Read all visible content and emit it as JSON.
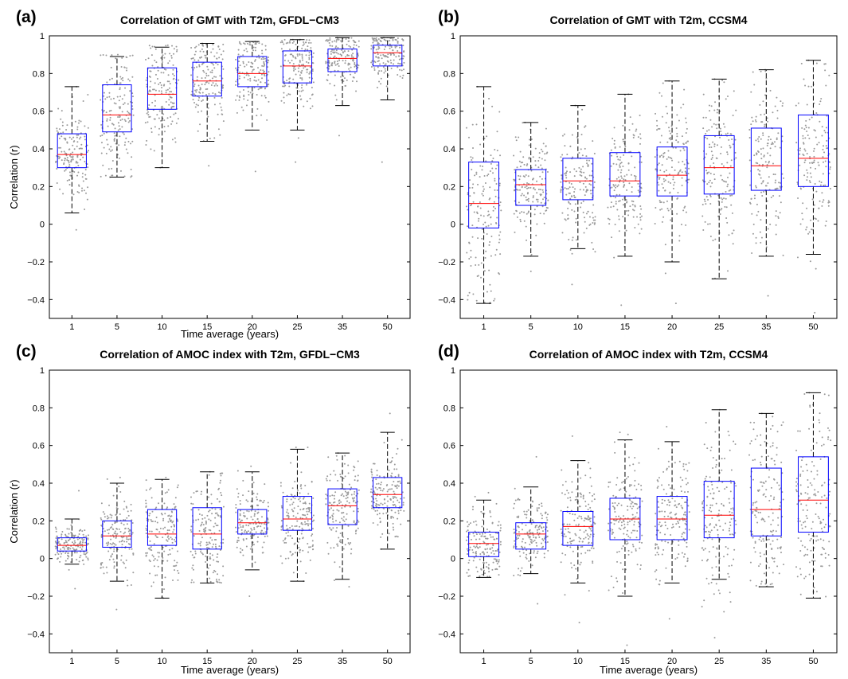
{
  "chart_data": [
    {
      "type": "box",
      "panel_label": "(a)",
      "title": "Correlation of GMT with T2m, GFDL−CM3",
      "xlabel": "Time average (years)",
      "ylabel": "Correlation (r)",
      "ylim": [
        -0.5,
        1
      ],
      "yticks": [
        -0.4,
        -0.2,
        0,
        0.2,
        0.4,
        0.6,
        0.8,
        1
      ],
      "ytick_labels": [
        "−0.4",
        "−0.2",
        "0",
        "0.2",
        "0.4",
        "0.6",
        "0.8",
        "1"
      ],
      "categories": [
        "1",
        "5",
        "10",
        "15",
        "20",
        "25",
        "35",
        "50"
      ],
      "boxes": [
        {
          "min": 0.06,
          "q1": 0.3,
          "median": 0.37,
          "q3": 0.48,
          "max": 0.73,
          "pmin": -0.03,
          "pmax": 0.73
        },
        {
          "min": 0.25,
          "q1": 0.49,
          "median": 0.58,
          "q3": 0.74,
          "max": 0.89,
          "pmin": 0.25,
          "pmax": 0.9
        },
        {
          "min": 0.3,
          "q1": 0.61,
          "median": 0.69,
          "q3": 0.83,
          "max": 0.94,
          "pmin": 0.3,
          "pmax": 0.95
        },
        {
          "min": 0.44,
          "q1": 0.68,
          "median": 0.76,
          "q3": 0.86,
          "max": 0.96,
          "pmin": 0.31,
          "pmax": 0.96
        },
        {
          "min": 0.5,
          "q1": 0.73,
          "median": 0.8,
          "q3": 0.89,
          "max": 0.97,
          "pmin": 0.28,
          "pmax": 0.97
        },
        {
          "min": 0.5,
          "q1": 0.75,
          "median": 0.84,
          "q3": 0.92,
          "max": 0.98,
          "pmin": 0.33,
          "pmax": 0.98
        },
        {
          "min": 0.63,
          "q1": 0.81,
          "median": 0.88,
          "q3": 0.93,
          "max": 0.99,
          "pmin": 0.47,
          "pmax": 0.99
        },
        {
          "min": 0.66,
          "q1": 0.84,
          "median": 0.91,
          "q3": 0.95,
          "max": 0.99,
          "pmin": 0.33,
          "pmax": 0.99
        }
      ]
    },
    {
      "type": "box",
      "panel_label": "(b)",
      "title": "Correlation of GMT with T2m, CCSM4",
      "xlabel": "",
      "ylabel": "",
      "ylim": [
        -0.5,
        1
      ],
      "yticks": [
        -0.4,
        -0.2,
        0,
        0.2,
        0.4,
        0.6,
        0.8,
        1
      ],
      "ytick_labels": [
        "−0.4",
        "−0.2",
        "0",
        "0.2",
        "0.4",
        "0.6",
        "0.8",
        "1"
      ],
      "categories": [
        "1",
        "5",
        "10",
        "15",
        "20",
        "25",
        "35",
        "50"
      ],
      "boxes": [
        {
          "min": -0.42,
          "q1": -0.02,
          "median": 0.11,
          "q3": 0.33,
          "max": 0.73,
          "pmin": -0.42,
          "pmax": 0.73
        },
        {
          "min": -0.17,
          "q1": 0.1,
          "median": 0.21,
          "q3": 0.29,
          "max": 0.54,
          "pmin": -0.25,
          "pmax": 0.54
        },
        {
          "min": -0.13,
          "q1": 0.13,
          "median": 0.23,
          "q3": 0.35,
          "max": 0.63,
          "pmin": -0.32,
          "pmax": 0.63
        },
        {
          "min": -0.17,
          "q1": 0.15,
          "median": 0.23,
          "q3": 0.38,
          "max": 0.69,
          "pmin": -0.43,
          "pmax": 0.69
        },
        {
          "min": -0.2,
          "q1": 0.15,
          "median": 0.26,
          "q3": 0.41,
          "max": 0.76,
          "pmin": -0.42,
          "pmax": 0.76
        },
        {
          "min": -0.29,
          "q1": 0.16,
          "median": 0.3,
          "q3": 0.47,
          "max": 0.77,
          "pmin": -0.29,
          "pmax": 0.77
        },
        {
          "min": -0.17,
          "q1": 0.18,
          "median": 0.31,
          "q3": 0.51,
          "max": 0.82,
          "pmin": -0.38,
          "pmax": 0.82
        },
        {
          "min": -0.16,
          "q1": 0.2,
          "median": 0.35,
          "q3": 0.58,
          "max": 0.87,
          "pmin": -0.47,
          "pmax": 0.87
        }
      ]
    },
    {
      "type": "box",
      "panel_label": "(c)",
      "title": "Correlation of AMOC index with T2m, GFDL−CM3",
      "xlabel": "Time average (years)",
      "ylabel": "Correlation (r)",
      "ylim": [
        -0.5,
        1
      ],
      "yticks": [
        -0.4,
        -0.2,
        0,
        0.2,
        0.4,
        0.6,
        0.8,
        1
      ],
      "ytick_labels": [
        "−0.4",
        "−0.2",
        "0",
        "0.2",
        "0.4",
        "0.6",
        "0.8",
        "1"
      ],
      "categories": [
        "1",
        "5",
        "10",
        "15",
        "20",
        "25",
        "35",
        "50"
      ],
      "boxes": [
        {
          "min": -0.03,
          "q1": 0.04,
          "median": 0.07,
          "q3": 0.11,
          "max": 0.21,
          "pmin": -0.16,
          "pmax": 0.36
        },
        {
          "min": -0.12,
          "q1": 0.06,
          "median": 0.12,
          "q3": 0.2,
          "max": 0.4,
          "pmin": -0.27,
          "pmax": 0.43
        },
        {
          "min": -0.21,
          "q1": 0.07,
          "median": 0.13,
          "q3": 0.26,
          "max": 0.42,
          "pmin": -0.21,
          "pmax": 0.43
        },
        {
          "min": -0.13,
          "q1": 0.05,
          "median": 0.13,
          "q3": 0.27,
          "max": 0.46,
          "pmin": -0.13,
          "pmax": 0.46
        },
        {
          "min": -0.06,
          "q1": 0.13,
          "median": 0.19,
          "q3": 0.26,
          "max": 0.46,
          "pmin": -0.2,
          "pmax": 0.49
        },
        {
          "min": -0.12,
          "q1": 0.15,
          "median": 0.21,
          "q3": 0.33,
          "max": 0.58,
          "pmin": -0.12,
          "pmax": 0.59
        },
        {
          "min": -0.11,
          "q1": 0.18,
          "median": 0.28,
          "q3": 0.37,
          "max": 0.56,
          "pmin": -0.15,
          "pmax": 0.56
        },
        {
          "min": 0.05,
          "q1": 0.27,
          "median": 0.34,
          "q3": 0.43,
          "max": 0.67,
          "pmin": 0.05,
          "pmax": 0.77
        }
      ]
    },
    {
      "type": "box",
      "panel_label": "(d)",
      "title": "Correlation of AMOC index with T2m, CCSM4",
      "xlabel": "Time average (years)",
      "ylabel": "",
      "ylim": [
        -0.5,
        1
      ],
      "yticks": [
        -0.4,
        -0.2,
        0,
        0.2,
        0.4,
        0.6,
        0.8,
        1
      ],
      "ytick_labels": [
        "−0.4",
        "−0.2",
        "0",
        "0.2",
        "0.4",
        "0.6",
        "0.8",
        "1"
      ],
      "categories": [
        "1",
        "5",
        "10",
        "15",
        "20",
        "25",
        "35",
        "50"
      ],
      "boxes": [
        {
          "min": -0.1,
          "q1": 0.01,
          "median": 0.08,
          "q3": 0.14,
          "max": 0.31,
          "pmin": -0.1,
          "pmax": 0.35
        },
        {
          "min": -0.08,
          "q1": 0.05,
          "median": 0.13,
          "q3": 0.19,
          "max": 0.38,
          "pmin": -0.24,
          "pmax": 0.54
        },
        {
          "min": -0.13,
          "q1": 0.07,
          "median": 0.17,
          "q3": 0.25,
          "max": 0.52,
          "pmin": -0.34,
          "pmax": 0.65
        },
        {
          "min": -0.2,
          "q1": 0.1,
          "median": 0.21,
          "q3": 0.32,
          "max": 0.63,
          "pmin": -0.46,
          "pmax": 0.67
        },
        {
          "min": -0.13,
          "q1": 0.1,
          "median": 0.21,
          "q3": 0.33,
          "max": 0.62,
          "pmin": -0.32,
          "pmax": 0.7
        },
        {
          "min": -0.11,
          "q1": 0.11,
          "median": 0.23,
          "q3": 0.41,
          "max": 0.79,
          "pmin": -0.42,
          "pmax": 0.79
        },
        {
          "min": -0.15,
          "q1": 0.12,
          "median": 0.26,
          "q3": 0.48,
          "max": 0.77,
          "pmin": -0.15,
          "pmax": 0.77
        },
        {
          "min": -0.21,
          "q1": 0.14,
          "median": 0.31,
          "q3": 0.54,
          "max": 0.88,
          "pmin": -0.21,
          "pmax": 0.88
        }
      ]
    }
  ],
  "style": {
    "box_color": "#0000ff",
    "median_color": "#ff0000",
    "whisker_color": "#000000",
    "point_color": "#9a9a9a"
  }
}
